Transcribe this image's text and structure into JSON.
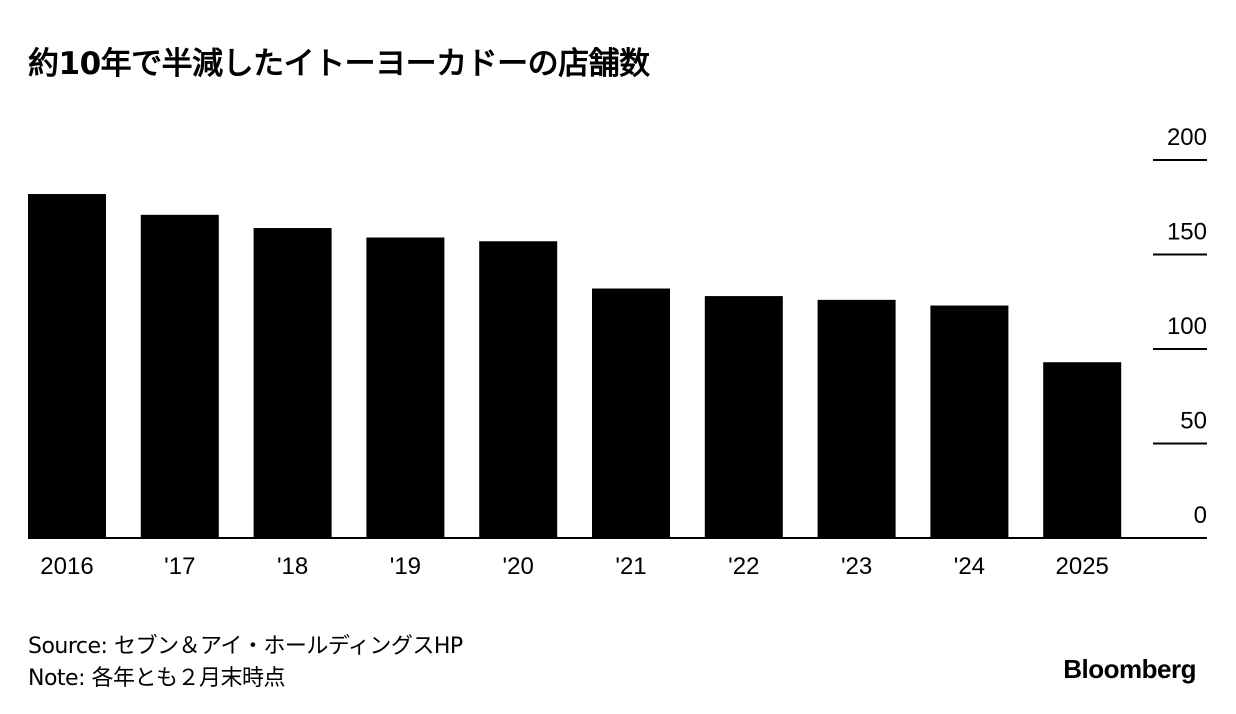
{
  "chart_data": {
    "type": "bar",
    "title": "約10年で半減したイトーヨーカドーの店舗数",
    "categories": [
      "2016",
      "'17",
      "'18",
      "'19",
      "'20",
      "'21",
      "'22",
      "'23",
      "'24",
      "2025"
    ],
    "values": [
      182,
      171,
      164,
      159,
      157,
      132,
      128,
      126,
      123,
      93
    ],
    "ylim": [
      0,
      200
    ],
    "yticks": [
      "0",
      "50",
      "100",
      "150",
      "200"
    ],
    "y_axis_position": "right",
    "grid": false,
    "bar_color": "#000000",
    "xlabel": "",
    "ylabel": ""
  },
  "footer": {
    "source": "Source: セブン＆アイ・ホールディングスHP",
    "note": "Note: 各年とも２月末時点",
    "logo": "Bloomberg"
  }
}
